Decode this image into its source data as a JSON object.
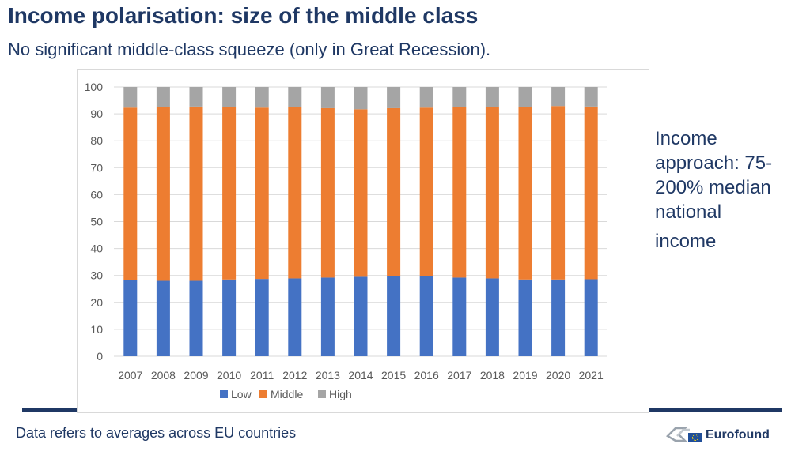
{
  "header": {
    "title": "Income polarisation: size of the middle class",
    "subtitle": "No significant middle-class squeeze (only in Great Recession)."
  },
  "side_note": {
    "lines": [
      "Income",
      "approach: 75-",
      "200% median",
      "national",
      "income"
    ]
  },
  "footer": {
    "note": "Data refers to averages across EU countries",
    "logo_text": "Eurofound"
  },
  "colors": {
    "low": "#4472c4",
    "middle": "#ed7d31",
    "high": "#a5a5a5",
    "title": "#1f3864",
    "grid": "#d9d9d9",
    "axis_text": "#595959"
  },
  "chart_data": {
    "type": "bar",
    "stacked": true,
    "title": "",
    "xlabel": "",
    "ylabel": "",
    "ylim": [
      0,
      100
    ],
    "yticks": [
      0,
      10,
      20,
      30,
      40,
      50,
      60,
      70,
      80,
      90,
      100
    ],
    "grid": true,
    "legend_position": "bottom",
    "categories": [
      "2007",
      "2008",
      "2009",
      "2010",
      "2011",
      "2012",
      "2013",
      "2014",
      "2015",
      "2016",
      "2017",
      "2018",
      "2019",
      "2020",
      "2021"
    ],
    "series": [
      {
        "name": "Low",
        "values": [
          28.3,
          28.0,
          28.0,
          28.5,
          28.7,
          28.9,
          29.2,
          29.5,
          29.7,
          29.8,
          29.2,
          28.9,
          28.5,
          28.5,
          28.6
        ]
      },
      {
        "name": "Middle",
        "values": [
          64.0,
          64.5,
          64.7,
          63.9,
          63.6,
          63.5,
          62.9,
          62.2,
          62.4,
          62.5,
          63.2,
          63.5,
          64.1,
          64.4,
          64.1
        ]
      },
      {
        "name": "High",
        "values": [
          7.7,
          7.5,
          7.3,
          7.6,
          7.7,
          7.6,
          7.9,
          8.3,
          7.9,
          7.7,
          7.6,
          7.6,
          7.4,
          7.1,
          7.3
        ]
      }
    ]
  }
}
